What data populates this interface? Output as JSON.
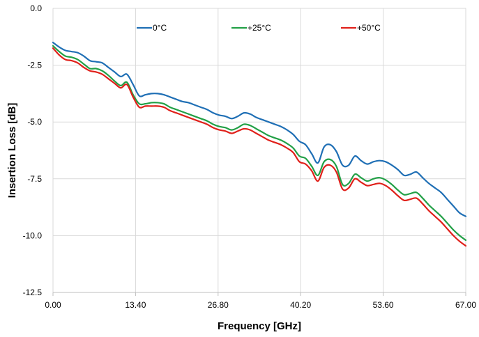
{
  "chart_data": {
    "type": "line",
    "title": "",
    "xlabel": "Frequency [GHz]",
    "ylabel": "Insertion Loss [dB]",
    "xlim": [
      0,
      67
    ],
    "ylim": [
      -12.5,
      0
    ],
    "x_ticks": [
      "0.00",
      "13.40",
      "26.80",
      "40.20",
      "53.60",
      "67.00"
    ],
    "y_ticks": [
      "0.0",
      "-2.5",
      "-5.0",
      "-7.5",
      "-10.0",
      "-12.5"
    ],
    "grid": true,
    "legend_position": "top",
    "series": [
      {
        "name": "0°C",
        "color": "#1f6fb5",
        "x": [
          0,
          1,
          2,
          3,
          4,
          5,
          6,
          7,
          8,
          9,
          10,
          11,
          12,
          13,
          14,
          15,
          16,
          17,
          18,
          19,
          20,
          21,
          22,
          23,
          24,
          25,
          26,
          27,
          28,
          29,
          30,
          31,
          32,
          33,
          34,
          35,
          36,
          37,
          38,
          39,
          40,
          41,
          42,
          43,
          44,
          45,
          46,
          47,
          48,
          49,
          50,
          51,
          52,
          53,
          54,
          55,
          56,
          57,
          58,
          59,
          60,
          61,
          62,
          63,
          64,
          65,
          66,
          67
        ],
        "y": [
          -1.5,
          -1.7,
          -1.85,
          -1.9,
          -1.95,
          -2.1,
          -2.3,
          -2.35,
          -2.4,
          -2.6,
          -2.8,
          -3.0,
          -2.9,
          -3.35,
          -3.85,
          -3.8,
          -3.75,
          -3.75,
          -3.8,
          -3.9,
          -4.0,
          -4.1,
          -4.15,
          -4.25,
          -4.35,
          -4.45,
          -4.6,
          -4.7,
          -4.75,
          -4.85,
          -4.75,
          -4.6,
          -4.65,
          -4.8,
          -4.9,
          -5.0,
          -5.1,
          -5.2,
          -5.35,
          -5.55,
          -5.85,
          -6.0,
          -6.4,
          -6.8,
          -6.1,
          -6.0,
          -6.3,
          -6.9,
          -6.9,
          -6.5,
          -6.7,
          -6.85,
          -6.75,
          -6.7,
          -6.75,
          -6.9,
          -7.1,
          -7.35,
          -7.3,
          -7.2,
          -7.45,
          -7.7,
          -7.9,
          -8.1,
          -8.4,
          -8.7,
          -9.0,
          -9.15
        ]
      },
      {
        "name": "+25°C",
        "color": "#22a046",
        "x": [
          0,
          1,
          2,
          3,
          4,
          5,
          6,
          7,
          8,
          9,
          10,
          11,
          12,
          13,
          14,
          15,
          16,
          17,
          18,
          19,
          20,
          21,
          22,
          23,
          24,
          25,
          26,
          27,
          28,
          29,
          30,
          31,
          32,
          33,
          34,
          35,
          36,
          37,
          38,
          39,
          40,
          41,
          42,
          43,
          44,
          45,
          46,
          47,
          48,
          49,
          50,
          51,
          52,
          53,
          54,
          55,
          56,
          57,
          58,
          59,
          60,
          61,
          62,
          63,
          64,
          65,
          66,
          67
        ],
        "y": [
          -1.65,
          -1.9,
          -2.1,
          -2.15,
          -2.25,
          -2.45,
          -2.65,
          -2.65,
          -2.75,
          -2.95,
          -3.2,
          -3.4,
          -3.25,
          -3.8,
          -4.2,
          -4.2,
          -4.15,
          -4.15,
          -4.2,
          -4.35,
          -4.45,
          -4.55,
          -4.65,
          -4.75,
          -4.85,
          -4.95,
          -5.1,
          -5.2,
          -5.25,
          -5.35,
          -5.25,
          -5.1,
          -5.15,
          -5.3,
          -5.45,
          -5.6,
          -5.7,
          -5.8,
          -5.95,
          -6.15,
          -6.5,
          -6.6,
          -6.95,
          -7.35,
          -6.75,
          -6.65,
          -6.95,
          -7.75,
          -7.7,
          -7.3,
          -7.45,
          -7.6,
          -7.5,
          -7.45,
          -7.55,
          -7.75,
          -8.0,
          -8.2,
          -8.15,
          -8.1,
          -8.35,
          -8.65,
          -8.9,
          -9.15,
          -9.45,
          -9.75,
          -10.0,
          -10.2
        ]
      },
      {
        "name": "+50°C",
        "color": "#e0201a",
        "x": [
          0,
          1,
          2,
          3,
          4,
          5,
          6,
          7,
          8,
          9,
          10,
          11,
          12,
          13,
          14,
          15,
          16,
          17,
          18,
          19,
          20,
          21,
          22,
          23,
          24,
          25,
          26,
          27,
          28,
          29,
          30,
          31,
          32,
          33,
          34,
          35,
          36,
          37,
          38,
          39,
          40,
          41,
          42,
          43,
          44,
          45,
          46,
          47,
          48,
          49,
          50,
          51,
          52,
          53,
          54,
          55,
          56,
          57,
          58,
          59,
          60,
          61,
          62,
          63,
          64,
          65,
          66,
          67
        ],
        "y": [
          -1.75,
          -2.05,
          -2.25,
          -2.3,
          -2.4,
          -2.6,
          -2.75,
          -2.8,
          -2.9,
          -3.1,
          -3.3,
          -3.5,
          -3.35,
          -3.9,
          -4.35,
          -4.3,
          -4.3,
          -4.3,
          -4.35,
          -4.5,
          -4.6,
          -4.7,
          -4.8,
          -4.9,
          -5.0,
          -5.1,
          -5.25,
          -5.35,
          -5.4,
          -5.5,
          -5.4,
          -5.3,
          -5.35,
          -5.5,
          -5.65,
          -5.8,
          -5.9,
          -6.0,
          -6.15,
          -6.35,
          -6.75,
          -6.85,
          -7.15,
          -7.6,
          -7.0,
          -6.9,
          -7.2,
          -7.95,
          -7.9,
          -7.5,
          -7.65,
          -7.8,
          -7.75,
          -7.7,
          -7.8,
          -8.0,
          -8.25,
          -8.45,
          -8.4,
          -8.35,
          -8.6,
          -8.9,
          -9.15,
          -9.4,
          -9.7,
          -10.0,
          -10.25,
          -10.45
        ]
      }
    ]
  }
}
